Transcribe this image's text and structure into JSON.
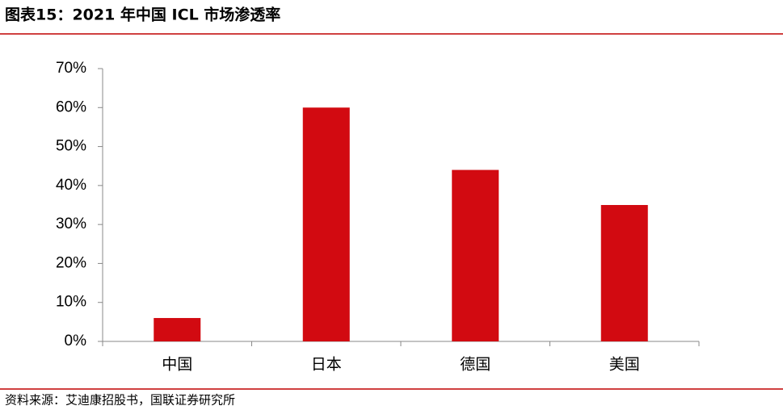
{
  "chart_data": {
    "type": "bar",
    "title": "图表15：2021 年中国 ICL 市场渗透率",
    "categories": [
      "中国",
      "日本",
      "德国",
      "美国"
    ],
    "values": [
      6,
      60,
      44,
      35
    ],
    "color": "#d20a11",
    "ylim": [
      0,
      70
    ],
    "yticks": [
      {
        "value": 0,
        "label": "0%"
      },
      {
        "value": 10,
        "label": "10%"
      },
      {
        "value": 20,
        "label": "20%"
      },
      {
        "value": 30,
        "label": "30%"
      },
      {
        "value": 40,
        "label": "40%"
      },
      {
        "value": 50,
        "label": "50%"
      },
      {
        "value": 60,
        "label": "60%"
      },
      {
        "value": 70,
        "label": "70%"
      }
    ],
    "grid": false,
    "source": "资料来源：艾迪康招股书，国联证券研究所"
  }
}
